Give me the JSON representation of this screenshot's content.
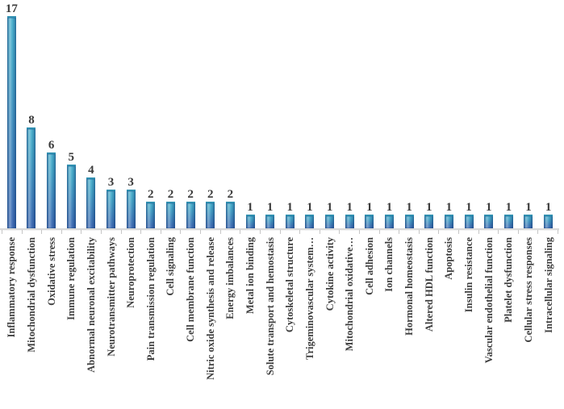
{
  "chart_data": {
    "type": "bar",
    "title": "",
    "xlabel": "",
    "ylabel": "",
    "ylim": [
      0,
      18
    ],
    "grid": false,
    "legend": "none",
    "value_labels_position": "above-bars",
    "categories": [
      "Inflammatory response",
      "Mitochondrial dysfunction",
      "Oxidative stress",
      "Immune regulation",
      "Abnormal neuronal excitability",
      "Neurotransmitter pathways",
      "Neuroprotection",
      "Pain transmission regulation",
      "Cell signaling",
      "Cell membrane function",
      "Nitric oxide synthesis and release",
      "Energy imbalances",
      "Metal ion binding",
      "Solute transport and hemostasis",
      "Cytoskeletal structure",
      "Trigeminovascular system…",
      "Cytokine activity",
      "Mitochondrial oxidative…",
      "Cell adhesion",
      "Ion channels",
      "Hormonal homeostasis",
      "Altered HDL function",
      "Apoptosis",
      "Insulin resistance",
      "Vascular endothelial function",
      "Platelet dysfunction",
      "Cellular stress responses",
      "Intracellular signaling"
    ],
    "values": [
      17,
      8,
      6,
      5,
      4,
      3,
      3,
      2,
      2,
      2,
      2,
      2,
      1,
      1,
      1,
      1,
      1,
      1,
      1,
      1,
      1,
      1,
      1,
      1,
      1,
      1,
      1,
      1
    ],
    "colors": {
      "bar_gradient_top": "#3aa9c9",
      "bar_gradient_bottom": "#2e5dad",
      "bar_edge": "#1c528c",
      "value_label": "#3a3a3a",
      "category_label": "#3f3f3f",
      "axis_line": "#d9d9d9",
      "tick": "#c6c6c6",
      "background": "#ffffff"
    }
  }
}
